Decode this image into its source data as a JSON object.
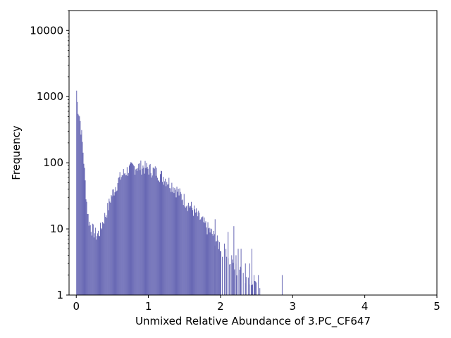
{
  "chart_data": {
    "type": "bar",
    "title": "",
    "xlabel": "Unmixed Relative Abundance of 3.PC_CF647",
    "ylabel": "Frequency",
    "xlim": [
      -0.1,
      5.0
    ],
    "ylim": [
      1,
      20000
    ],
    "yscale": "log",
    "grid": false,
    "bar_color": "#6868b4",
    "bin_width": 0.01,
    "x_ticks": [
      {
        "value": 0,
        "label": "0"
      },
      {
        "value": 1,
        "label": "1"
      },
      {
        "value": 2,
        "label": "2"
      },
      {
        "value": 3,
        "label": "3"
      },
      {
        "value": 4,
        "label": "4"
      },
      {
        "value": 5,
        "label": "5"
      }
    ],
    "y_ticks": [
      {
        "value": 1,
        "label": "1"
      },
      {
        "value": 10,
        "label": "10"
      },
      {
        "value": 100,
        "label": "100"
      },
      {
        "value": 1000,
        "label": "1000"
      },
      {
        "value": 10000,
        "label": "10000"
      }
    ],
    "control_points": [
      [
        0.0,
        1700
      ],
      [
        0.01,
        900
      ],
      [
        0.02,
        720
      ],
      [
        0.03,
        640
      ],
      [
        0.04,
        560
      ],
      [
        0.05,
        480
      ],
      [
        0.06,
        380
      ],
      [
        0.07,
        300
      ],
      [
        0.08,
        230
      ],
      [
        0.09,
        170
      ],
      [
        0.1,
        130
      ],
      [
        0.11,
        90
      ],
      [
        0.12,
        60
      ],
      [
        0.13,
        42
      ],
      [
        0.14,
        30
      ],
      [
        0.15,
        22
      ],
      [
        0.16,
        17
      ],
      [
        0.17,
        14
      ],
      [
        0.18,
        13
      ],
      [
        0.2,
        11
      ],
      [
        0.22,
        10
      ],
      [
        0.25,
        9
      ],
      [
        0.28,
        8
      ],
      [
        0.32,
        9
      ],
      [
        0.35,
        11
      ],
      [
        0.38,
        14
      ],
      [
        0.42,
        18
      ],
      [
        0.45,
        23
      ],
      [
        0.48,
        30
      ],
      [
        0.52,
        38
      ],
      [
        0.56,
        48
      ],
      [
        0.6,
        58
      ],
      [
        0.65,
        68
      ],
      [
        0.7,
        76
      ],
      [
        0.75,
        82
      ],
      [
        0.8,
        86
      ],
      [
        0.85,
        88
      ],
      [
        0.9,
        88
      ],
      [
        0.95,
        86
      ],
      [
        1.0,
        82
      ],
      [
        1.05,
        78
      ],
      [
        1.1,
        74
      ],
      [
        1.15,
        68
      ],
      [
        1.2,
        62
      ],
      [
        1.25,
        56
      ],
      [
        1.3,
        50
      ],
      [
        1.35,
        44
      ],
      [
        1.4,
        38
      ],
      [
        1.45,
        32
      ],
      [
        1.5,
        28
      ],
      [
        1.55,
        24
      ],
      [
        1.6,
        21
      ],
      [
        1.65,
        18
      ],
      [
        1.7,
        15
      ],
      [
        1.75,
        13
      ],
      [
        1.8,
        11
      ],
      [
        1.85,
        9.5
      ],
      [
        1.9,
        8
      ],
      [
        1.95,
        6.5
      ],
      [
        2.0,
        5.5
      ],
      [
        2.05,
        4.5
      ],
      [
        2.1,
        3.8
      ],
      [
        2.15,
        3.2
      ],
      [
        2.2,
        2.8
      ],
      [
        2.25,
        2.4
      ],
      [
        2.3,
        2.0
      ],
      [
        2.35,
        1.8
      ],
      [
        2.4,
        1.6
      ],
      [
        2.45,
        1.4
      ],
      [
        2.5,
        1.3
      ],
      [
        2.55,
        1.0
      ]
    ],
    "outliers": [
      {
        "x": 1.92,
        "y": 14
      },
      {
        "x": 2.05,
        "y": 6
      },
      {
        "x": 2.1,
        "y": 9
      },
      {
        "x": 2.15,
        "y": 4
      },
      {
        "x": 2.18,
        "y": 11
      },
      {
        "x": 2.21,
        "y": 4
      },
      {
        "x": 2.24,
        "y": 5
      },
      {
        "x": 2.28,
        "y": 5
      },
      {
        "x": 2.34,
        "y": 3
      },
      {
        "x": 2.4,
        "y": 3
      },
      {
        "x": 2.43,
        "y": 5
      },
      {
        "x": 2.46,
        "y": 2
      },
      {
        "x": 2.52,
        "y": 2
      },
      {
        "x": 2.85,
        "y": 2
      }
    ]
  }
}
